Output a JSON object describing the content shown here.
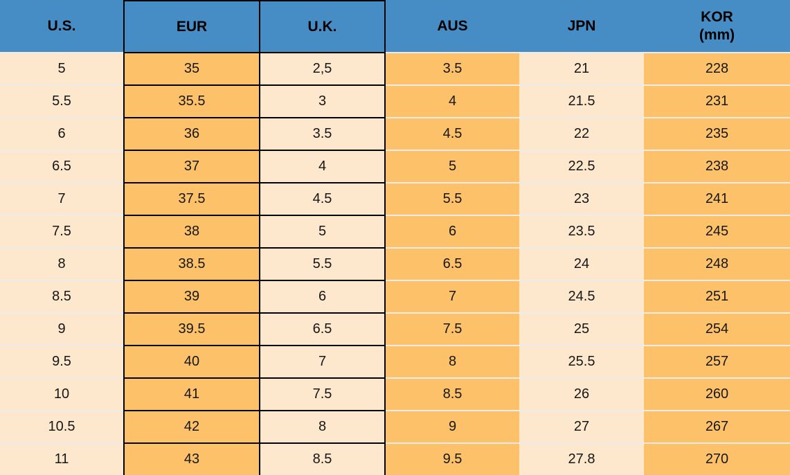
{
  "chart_data": {
    "type": "table",
    "columns": [
      {
        "label": "U.S."
      },
      {
        "label": "EUR"
      },
      {
        "label": "U.K."
      },
      {
        "label": "AUS"
      },
      {
        "label": "JPN"
      },
      {
        "label": "KOR",
        "sublabel": "(mm)"
      }
    ],
    "rows": [
      [
        "5",
        "35",
        "2,5",
        "3.5",
        "21",
        "228"
      ],
      [
        "5.5",
        "35.5",
        "3",
        "4",
        "21.5",
        "231"
      ],
      [
        "6",
        "36",
        "3.5",
        "4.5",
        "22",
        "235"
      ],
      [
        "6.5",
        "37",
        "4",
        "5",
        "22.5",
        "238"
      ],
      [
        "7",
        "37.5",
        "4.5",
        "5.5",
        "23",
        "241"
      ],
      [
        "7.5",
        "38",
        "5",
        "6",
        "23.5",
        "245"
      ],
      [
        "8",
        "38.5",
        "5.5",
        "6.5",
        "24",
        "248"
      ],
      [
        "8.5",
        "39",
        "6",
        "7",
        "24.5",
        "251"
      ],
      [
        "9",
        "39.5",
        "6.5",
        "7.5",
        "25",
        "254"
      ],
      [
        "9.5",
        "40",
        "7",
        "8",
        "25.5",
        "257"
      ],
      [
        "10",
        "41",
        "7.5",
        "8.5",
        "26",
        "260"
      ],
      [
        "10.5",
        "42",
        "8",
        "9",
        "27",
        "267"
      ],
      [
        "11",
        "43",
        "8.5",
        "9.5",
        "27.8",
        "270"
      ]
    ]
  },
  "colors": {
    "header_bg": "#478dc5",
    "header_text": "#000000",
    "cell_text": "#161616",
    "orange_cell_bg": "#fdc269",
    "cream_cell_bg": "#fde8cd",
    "black_border": "#000000",
    "row_separator": "#edecea"
  }
}
